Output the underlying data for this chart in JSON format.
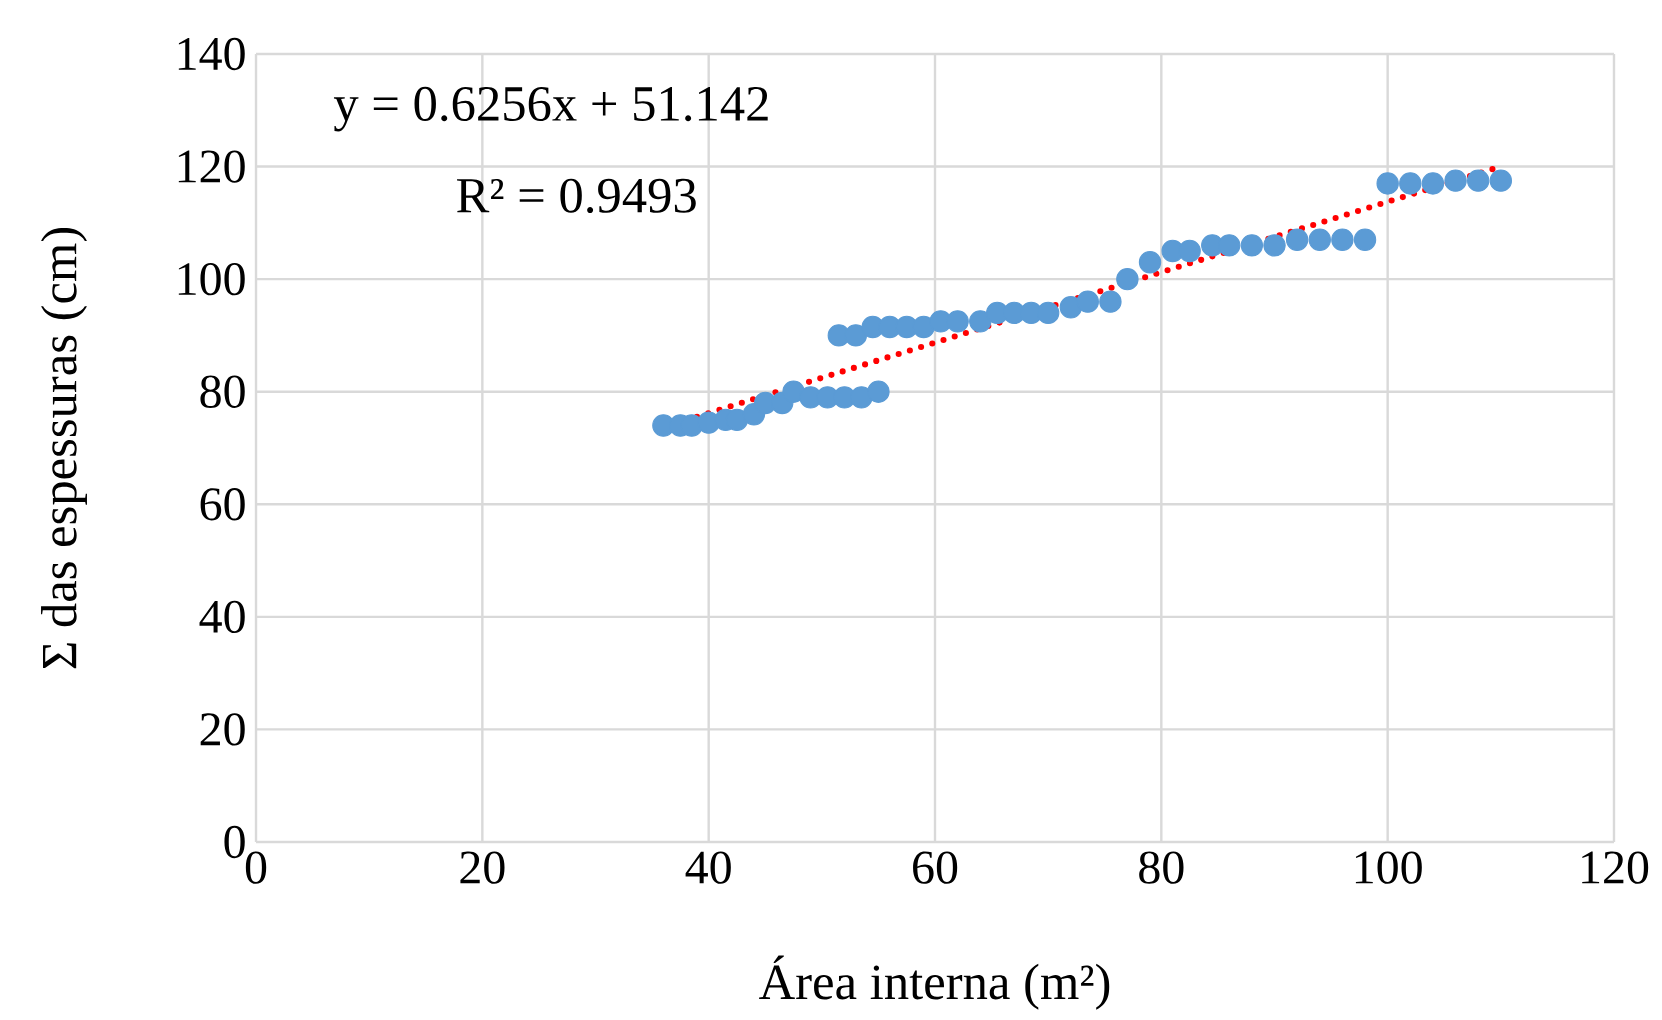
{
  "chart_data": {
    "type": "scatter",
    "xlabel": "Área interna (m²)",
    "ylabel": "Σ das espessuras (cm)",
    "annotations": [
      "y = 0.6256x  + 51.142",
      "R² = 0.9493"
    ],
    "xlim": [
      0,
      120
    ],
    "xticks": [
      0,
      20,
      40,
      60,
      80,
      100,
      120
    ],
    "ylim": [
      0,
      140
    ],
    "yticks": [
      0,
      20,
      40,
      60,
      80,
      100,
      120,
      140
    ],
    "grid": true,
    "series": [
      {
        "color": "#5b9bd5",
        "marker": "circle",
        "x": [
          36,
          37.5,
          38.5,
          40,
          41.5,
          42.5,
          44,
          45,
          46.5,
          47.5,
          49,
          50.5,
          52,
          53.5,
          55,
          51.5,
          53,
          54.5,
          56,
          57.5,
          59,
          60.5,
          62,
          64,
          65.5,
          67,
          68.5,
          70,
          72,
          73.5,
          75.5,
          77,
          79,
          81,
          82.5,
          84.5,
          86,
          88,
          90,
          92,
          94,
          96,
          98,
          100,
          102,
          104,
          106,
          108,
          110
        ],
        "values": [
          74,
          74,
          74,
          74.5,
          75,
          75,
          76,
          78,
          78,
          80,
          79,
          79,
          79,
          79,
          80,
          90,
          90,
          91.5,
          91.5,
          91.5,
          91.5,
          92.5,
          92.5,
          92.5,
          94,
          94,
          94,
          94,
          95,
          96,
          96,
          100,
          103,
          105,
          105,
          106,
          106,
          106,
          106,
          107,
          107,
          107,
          107,
          117,
          117,
          117,
          117.5,
          117.5,
          117.5
        ]
      },
      {
        "type": "line",
        "color": "#ff0000",
        "line_style": "dotted",
        "marker": "none",
        "x": [
          36,
          110
        ],
        "values": [
          73.7,
          120.0
        ]
      }
    ]
  }
}
